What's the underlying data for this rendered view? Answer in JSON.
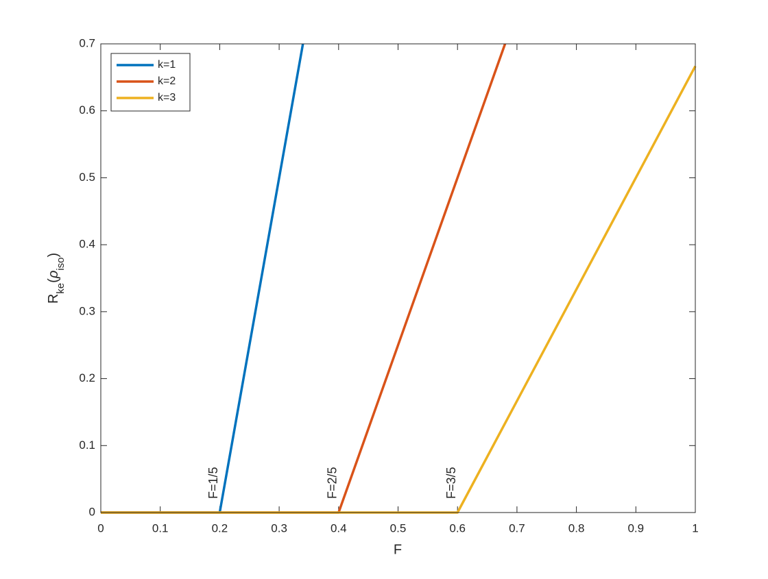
{
  "chart_data": {
    "type": "line",
    "xlabel": "F",
    "ylabel": [
      {
        "text": "R"
      },
      {
        "text": "ke",
        "sub": true
      },
      {
        "text": "("
      },
      {
        "text": "ρ",
        "italic": true
      },
      {
        "text": "iso",
        "sub": true
      },
      {
        "text": ")"
      }
    ],
    "xlim": [
      0,
      1
    ],
    "ylim": [
      0,
      0.7
    ],
    "xticks": [
      0,
      0.1,
      0.2,
      0.3,
      0.4,
      0.5,
      0.6,
      0.7,
      0.8,
      0.9,
      1
    ],
    "yticks": [
      0,
      0.1,
      0.2,
      0.3,
      0.4,
      0.5,
      0.6,
      0.7
    ],
    "legend": "upper-left",
    "series": [
      {
        "name": "k=1",
        "color": "#0072BD",
        "x": [
          0,
          0.2,
          0.34
        ],
        "values": [
          0,
          0,
          0.7
        ]
      },
      {
        "name": "k=2",
        "color": "#D95319",
        "x": [
          0,
          0.4,
          0.68
        ],
        "values": [
          0,
          0,
          0.7
        ]
      },
      {
        "name": "k=3",
        "color": "#EDB120",
        "x": [
          0,
          0.6,
          1
        ],
        "values": [
          0,
          0,
          0.6667
        ]
      }
    ],
    "annotations": [
      {
        "text": "F=1/5",
        "x": 0.2,
        "y": 0
      },
      {
        "text": "F=2/5",
        "x": 0.4,
        "y": 0
      },
      {
        "text": "F=3/5",
        "x": 0.6,
        "y": 0
      }
    ]
  }
}
